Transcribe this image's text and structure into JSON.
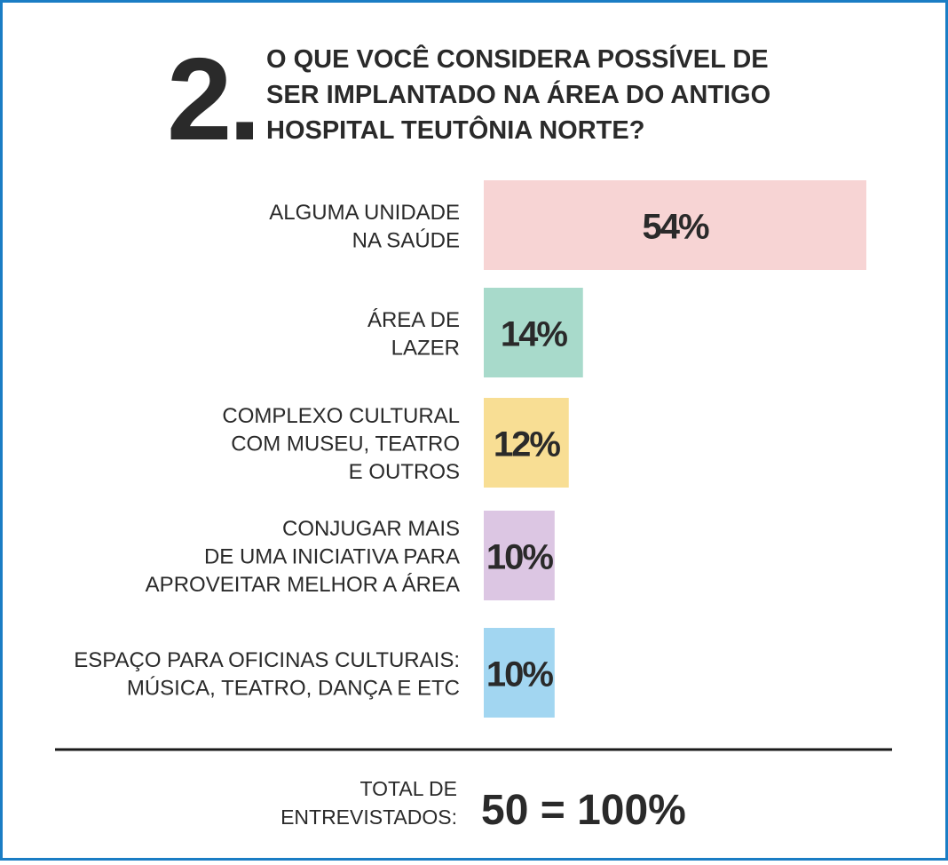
{
  "number": "2.",
  "chart_data": {
    "type": "bar",
    "title": [
      "O QUE VOCÊ CONSIDERA POSSÍVEL DE",
      "SER IMPLANTADO NA ÁREA DO ANTIGO",
      "HOSPITAL TEUTÔNIA NORTE?"
    ],
    "categories": [
      [
        "ALGUMA UNIDADE",
        "NA SAÚDE"
      ],
      [
        "ÁREA DE",
        "LAZER"
      ],
      [
        "COMPLEXO CULTURAL",
        "COM MUSEU, TEATRO",
        "E OUTROS"
      ],
      [
        "CONJUGAR MAIS",
        "DE UMA INICIATIVA PARA",
        "APROVEITAR MELHOR A ÁREA"
      ],
      [
        "ESPAÇO PARA OFICINAS CULTURAIS:",
        "MÚSICA, TEATRO, DANÇA E ETC"
      ]
    ],
    "values": [
      54,
      14,
      12,
      10,
      10
    ],
    "value_labels": [
      "54%",
      "14%",
      "12%",
      "10%",
      "10%"
    ],
    "colors": [
      "#f7d4d4",
      "#a8dacb",
      "#f8de94",
      "#dcc6e3",
      "#a2d6f1"
    ]
  },
  "footer": {
    "label": [
      "TOTAL DE",
      "ENTREVISTADOS:"
    ],
    "value": "50 = 100%"
  }
}
